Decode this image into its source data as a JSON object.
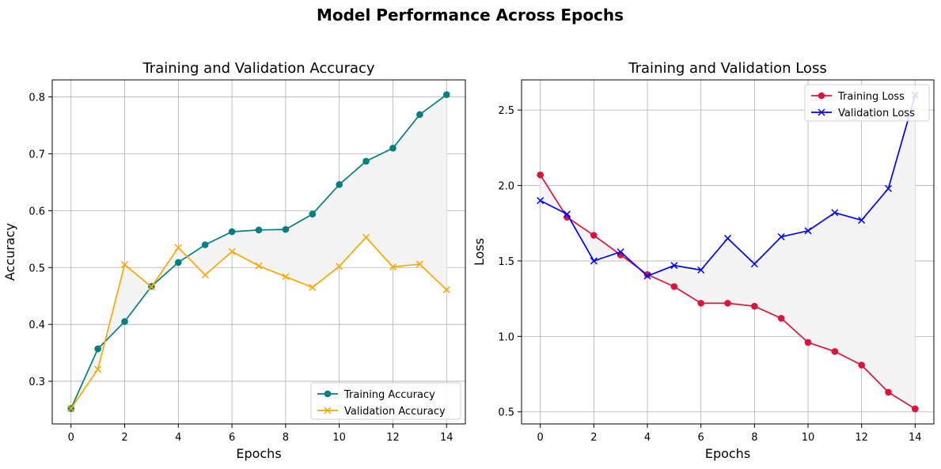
{
  "figure_title": "Model Performance Across Epochs",
  "chart_data": [
    {
      "type": "line",
      "title": "Training and Validation Accuracy",
      "xlabel": "Epochs",
      "ylabel": "Accuracy",
      "x": [
        0,
        1,
        2,
        3,
        4,
        5,
        6,
        7,
        8,
        9,
        10,
        11,
        12,
        13,
        14
      ],
      "xlim": [
        -0.7,
        14.7
      ],
      "ylim": [
        0.225,
        0.83
      ],
      "xticks": [
        0,
        2,
        4,
        6,
        8,
        10,
        12,
        14
      ],
      "yticks": [
        0.3,
        0.4,
        0.5,
        0.6,
        0.7,
        0.8
      ],
      "ytick_labels": [
        "0.3",
        "0.4",
        "0.5",
        "0.6",
        "0.7",
        "0.8"
      ],
      "grid": true,
      "fill_between": true,
      "fill_color": "#f4f4f4",
      "legend_position": "lower right",
      "series": [
        {
          "name": "Training Accuracy",
          "color": "#008080",
          "marker": "circle",
          "values": [
            0.252,
            0.357,
            0.405,
            0.467,
            0.509,
            0.54,
            0.563,
            0.566,
            0.567,
            0.594,
            0.646,
            0.687,
            0.71,
            0.769,
            0.804
          ]
        },
        {
          "name": "Validation Accuracy",
          "color": "#ffa500",
          "marker": "x",
          "values": [
            0.252,
            0.321,
            0.505,
            0.466,
            0.535,
            0.487,
            0.528,
            0.503,
            0.484,
            0.465,
            0.502,
            0.553,
            0.501,
            0.506,
            0.461
          ]
        }
      ]
    },
    {
      "type": "line",
      "title": "Training and Validation Loss",
      "xlabel": "Epochs",
      "ylabel": "Loss",
      "x": [
        0,
        1,
        2,
        3,
        4,
        5,
        6,
        7,
        8,
        9,
        10,
        11,
        12,
        13,
        14
      ],
      "xlim": [
        -0.7,
        14.7
      ],
      "ylim": [
        0.42,
        2.7
      ],
      "xticks": [
        0,
        2,
        4,
        6,
        8,
        10,
        12,
        14
      ],
      "yticks": [
        0.5,
        1.0,
        1.5,
        2.0,
        2.5
      ],
      "ytick_labels": [
        "0.5",
        "1.0",
        "1.5",
        "2.0",
        "2.5"
      ],
      "grid": true,
      "fill_between": true,
      "fill_color": "#f4f4f4",
      "legend_position": "upper right",
      "series": [
        {
          "name": "Training Loss",
          "color": "#dc143c",
          "marker": "circle",
          "values": [
            2.07,
            1.79,
            1.67,
            1.54,
            1.41,
            1.33,
            1.22,
            1.22,
            1.2,
            1.12,
            0.96,
            0.9,
            0.81,
            0.63,
            0.52
          ]
        },
        {
          "name": "Validation Loss",
          "color": "#0000ff",
          "marker": "x",
          "values": [
            1.9,
            1.81,
            1.5,
            1.56,
            1.4,
            1.47,
            1.44,
            1.65,
            1.48,
            1.66,
            1.7,
            1.82,
            1.77,
            1.98,
            2.6
          ]
        }
      ]
    }
  ]
}
